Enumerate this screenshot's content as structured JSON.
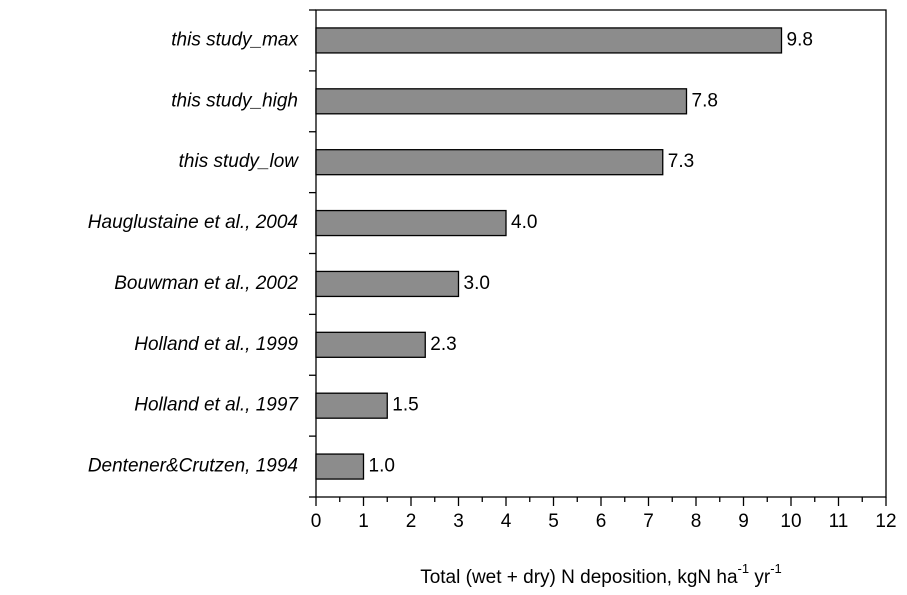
{
  "chart_data": {
    "type": "bar",
    "orientation": "horizontal",
    "categories": [
      "this study_max",
      "this study_high",
      "this study_low",
      "Hauglustaine et al., 2004",
      "Bouwman et al., 2002",
      "Holland et al., 1999",
      "Holland et al., 1997",
      "Dentener&Crutzen, 1994"
    ],
    "values": [
      9.8,
      7.8,
      7.3,
      4,
      3,
      2.3,
      1.5,
      1
    ],
    "value_labels": [
      "9.8",
      "7.8",
      "7.3",
      "4.0",
      "3.0",
      "2.3",
      "1.5",
      "1.0"
    ],
    "color": "#8c8c8c",
    "xlabel": [
      "Total (wet + dry) N deposition, kgN ha",
      "-1",
      " yr",
      "-1"
    ],
    "xlim": [
      0,
      12
    ],
    "xticks": [
      0,
      1,
      2,
      3,
      4,
      5,
      6,
      7,
      8,
      9,
      10,
      11,
      12
    ],
    "grid": false
  }
}
